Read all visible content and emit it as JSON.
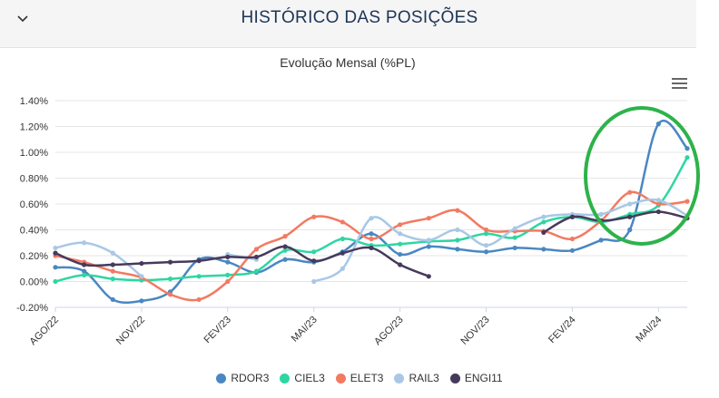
{
  "header": {
    "title": "HISTÓRICO DAS POSIÇÕES",
    "toggle_icon": "chevron-down-icon"
  },
  "menu_icon": "hamburger-menu-icon",
  "chart_data": {
    "type": "line",
    "title": "Evolução Mensal (%PL)",
    "xlabel": "",
    "ylabel": "",
    "ylim": [
      -0.2,
      1.4
    ],
    "yticks": [
      "-0.20%",
      "0.00%",
      "0.20%",
      "0.40%",
      "0.60%",
      "0.80%",
      "1.00%",
      "1.20%",
      "1.40%"
    ],
    "yticks_values": [
      -0.2,
      0,
      0.2,
      0.4,
      0.6,
      0.8,
      1.0,
      1.2,
      1.4
    ],
    "categories": [
      "AGO/22",
      "SET/22",
      "OUT/22",
      "NOV/22",
      "DEZ/22",
      "JAN/23",
      "FEV/23",
      "MAR/23",
      "ABR/23",
      "MAI/23",
      "JUN/23",
      "JUL/23",
      "AGO/23",
      "SET/23",
      "OUT/23",
      "NOV/23",
      "DEZ/23",
      "JAN/24",
      "FEV/24",
      "MAR/24",
      "ABR/24",
      "MAI/24",
      "JUN/24"
    ],
    "xtick_labels": [
      "AGO/22",
      "NOV/22",
      "FEV/23",
      "MAI/23",
      "AGO/23",
      "NOV/23",
      "FEV/24",
      "MAI/24"
    ],
    "xtick_indices": [
      0,
      3,
      6,
      9,
      12,
      15,
      18,
      21
    ],
    "grid": true,
    "legend_position": "bottom",
    "series": [
      {
        "name": "RDOR3",
        "color": "#4a87c2",
        "values": [
          0.11,
          0.08,
          -0.14,
          -0.15,
          -0.08,
          0.17,
          0.15,
          0.07,
          0.17,
          0.15,
          0.23,
          0.37,
          0.21,
          0.27,
          0.25,
          0.23,
          0.26,
          0.25,
          0.24,
          0.32,
          0.4,
          1.22,
          1.03
        ]
      },
      {
        "name": "CIEL3",
        "color": "#2ed6a2",
        "values": [
          0.0,
          0.05,
          0.02,
          0.01,
          0.02,
          0.04,
          0.05,
          0.08,
          0.24,
          0.23,
          0.33,
          0.28,
          0.29,
          0.31,
          0.32,
          0.37,
          0.34,
          0.46,
          0.5,
          0.46,
          0.52,
          0.59,
          0.96
        ]
      },
      {
        "name": "ELET3",
        "color": "#f27a61",
        "values": [
          0.2,
          0.15,
          0.08,
          0.03,
          -0.1,
          -0.14,
          0.0,
          0.25,
          0.35,
          0.5,
          0.46,
          0.33,
          0.44,
          0.49,
          0.55,
          0.4,
          0.39,
          0.39,
          0.33,
          0.47,
          0.69,
          0.6,
          0.62
        ]
      },
      {
        "name": "RAIL3",
        "color": "#a8c8e6",
        "values": [
          0.26,
          0.3,
          0.22,
          0.04,
          null,
          null,
          0.21,
          0.17,
          null,
          0.0,
          0.1,
          0.49,
          0.37,
          0.32,
          0.4,
          0.28,
          0.41,
          0.5,
          0.52,
          0.52,
          0.6,
          0.63,
          0.51
        ]
      },
      {
        "name": "ENGI11",
        "color": "#463a5c",
        "values": [
          0.22,
          0.13,
          0.13,
          0.14,
          0.15,
          0.16,
          0.19,
          0.19,
          0.27,
          0.16,
          0.22,
          0.26,
          0.13,
          0.04,
          null,
          null,
          null,
          0.38,
          0.5,
          0.47,
          0.5,
          0.54,
          0.49
        ]
      }
    ]
  }
}
